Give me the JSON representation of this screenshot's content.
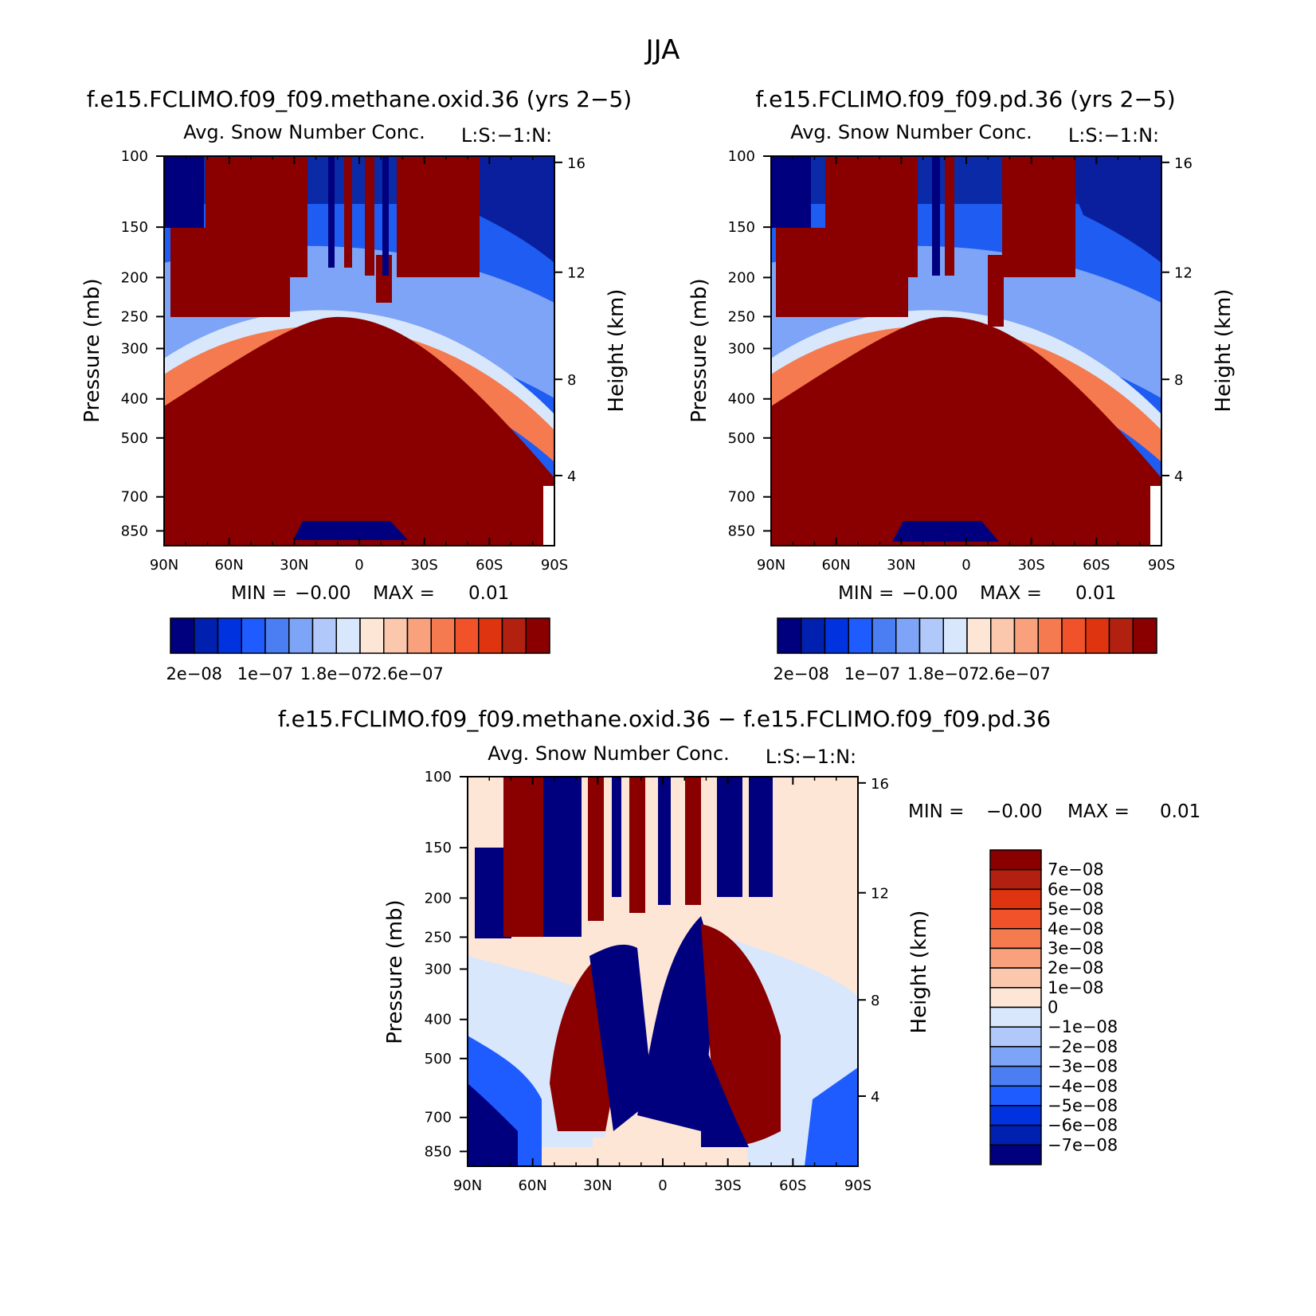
{
  "page_title": "JJA",
  "colors": {
    "cbar_panel": [
      "#00007f",
      "#0020b0",
      "#0032e0",
      "#1e5cff",
      "#4a7ef2",
      "#7ea4f7",
      "#b1c8fa",
      "#d8e7fb",
      "#fde6d6",
      "#fbc7ad",
      "#f9a07d",
      "#f57a4f",
      "#f2522a",
      "#de3410",
      "#b22010",
      "#8a0000"
    ],
    "cbar_diff": [
      "#8a0000",
      "#b22010",
      "#de3410",
      "#f2522a",
      "#f57a4f",
      "#f9a07d",
      "#fbc7ad",
      "#fde6d6",
      "#d8e7fb",
      "#b1c8fa",
      "#7ea4f7",
      "#4a7ef2",
      "#1e5cff",
      "#0032e0",
      "#0020b0",
      "#00007f"
    ]
  },
  "chart_data": [
    {
      "type": "heatmap",
      "title": "f.e15.FCLIMO.f09_f09.methane.oxid.36 (yrs 2−5)",
      "subtitle": "Avg. Snow Number Conc.",
      "units_label": "L:S:−1:N:",
      "ylabel": "Pressure (mb)",
      "ylabel_right": "Height (km)",
      "x_ticks": [
        "90N",
        "60N",
        "30N",
        "0",
        "30S",
        "60S",
        "90S"
      ],
      "y_ticks": [
        "100",
        "150",
        "200",
        "250",
        "300",
        "400",
        "500",
        "700",
        "850"
      ],
      "y_ticks_right": [
        "16",
        "12",
        "8",
        "4"
      ],
      "min_label": "MIN =",
      "min_value": "−0.00",
      "max_label": "MAX =",
      "max_value": "0.01",
      "colorbar_labels": [
        "2e−08",
        "1e−07",
        "1.8e−07",
        "2.6e−07"
      ]
    },
    {
      "type": "heatmap",
      "title": "f.e15.FCLIMO.f09_f09.pd.36 (yrs 2−5)",
      "subtitle": "Avg. Snow Number Conc.",
      "units_label": "L:S:−1:N:",
      "ylabel": "Pressure (mb)",
      "ylabel_right": "Height (km)",
      "x_ticks": [
        "90N",
        "60N",
        "30N",
        "0",
        "30S",
        "60S",
        "90S"
      ],
      "y_ticks": [
        "100",
        "150",
        "200",
        "250",
        "300",
        "400",
        "500",
        "700",
        "850"
      ],
      "y_ticks_right": [
        "16",
        "12",
        "8",
        "4"
      ],
      "min_label": "MIN =",
      "min_value": "−0.00",
      "max_label": "MAX =",
      "max_value": "0.01",
      "colorbar_labels": [
        "2e−08",
        "1e−07",
        "1.8e−07",
        "2.6e−07"
      ]
    },
    {
      "type": "heatmap",
      "title": "f.e15.FCLIMO.f09_f09.methane.oxid.36 − f.e15.FCLIMO.f09_f09.pd.36",
      "subtitle": "Avg. Snow Number Conc.",
      "units_label": "L:S:−1:N:",
      "ylabel": "Pressure (mb)",
      "ylabel_right": "Height (km)",
      "x_ticks": [
        "90N",
        "60N",
        "30N",
        "0",
        "30S",
        "60S",
        "90S"
      ],
      "y_ticks": [
        "100",
        "150",
        "200",
        "250",
        "300",
        "400",
        "500",
        "700",
        "850"
      ],
      "y_ticks_right": [
        "16",
        "12",
        "8",
        "4"
      ],
      "min_label": "MIN =",
      "min_value": "−0.00",
      "max_label": "MAX =",
      "max_value": "0.01",
      "colorbar_labels": [
        "7e−08",
        "6e−08",
        "5e−08",
        "4e−08",
        "3e−08",
        "2e−08",
        "1e−08",
        "0",
        "−1e−08",
        "−2e−08",
        "−3e−08",
        "−4e−08",
        "−5e−08",
        "−6e−08",
        "−7e−08"
      ]
    }
  ]
}
